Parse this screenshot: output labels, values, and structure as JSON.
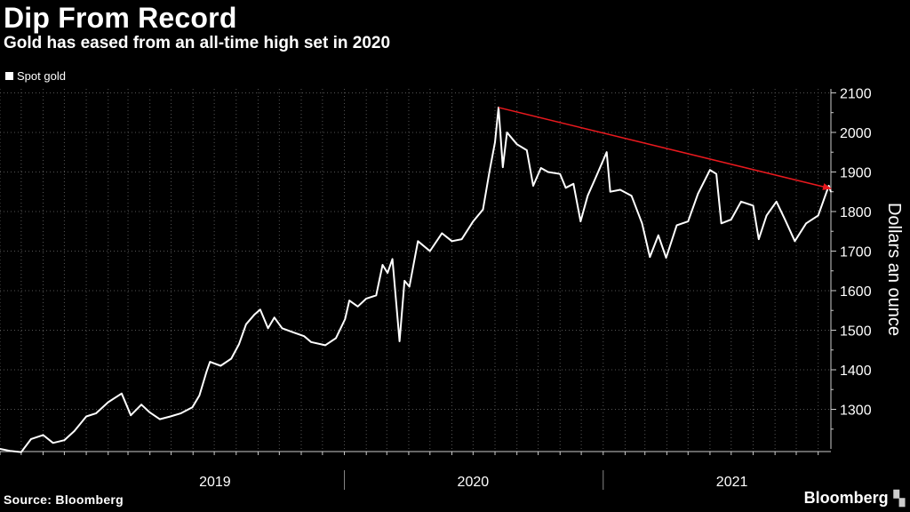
{
  "header": {
    "title": "Dip From Record",
    "subtitle": "Gold has eased from an all-time high set in 2020"
  },
  "legend": {
    "items": [
      {
        "label": "Spot gold",
        "color": "#ffffff"
      }
    ]
  },
  "footer": {
    "source": "Source: Bloomberg",
    "brand": "Bloomberg"
  },
  "colors": {
    "background": "#000000",
    "line": "#ffffff",
    "arrow": "#e8191e",
    "grid": "#555555"
  },
  "chart_data": {
    "type": "line",
    "title": "Dip From Record",
    "subtitle": "Gold has eased from an all-time high set in 2020",
    "xlabel": "",
    "ylabel": "Dollars an ounce",
    "xlim": [
      "2018-09-01",
      "2021-11-19"
    ],
    "ylim": [
      1200,
      2110
    ],
    "y_ticks": [
      1300,
      1400,
      1500,
      1600,
      1700,
      1800,
      1900,
      2000,
      2100
    ],
    "x_tick_labels": [
      {
        "label": "2019",
        "x": "2019-07-02"
      },
      {
        "label": "2020",
        "x": "2020-07-01"
      },
      {
        "label": "2021",
        "x": "2021-07-02"
      }
    ],
    "x_year_dividers": [
      "2020-01-01",
      "2021-01-01"
    ],
    "grid": true,
    "y_axis_position": "right",
    "legend_position": "top-left",
    "series": [
      {
        "name": "Spot gold",
        "points": [
          [
            "2018-09-01",
            1200
          ],
          [
            "2018-09-15",
            1195
          ],
          [
            "2018-10-01",
            1192
          ],
          [
            "2018-10-15",
            1225
          ],
          [
            "2018-11-01",
            1235
          ],
          [
            "2018-11-15",
            1215
          ],
          [
            "2018-12-01",
            1222
          ],
          [
            "2018-12-15",
            1245
          ],
          [
            "2019-01-01",
            1282
          ],
          [
            "2019-01-15",
            1290
          ],
          [
            "2019-02-01",
            1318
          ],
          [
            "2019-02-20",
            1340
          ],
          [
            "2019-03-05",
            1285
          ],
          [
            "2019-03-20",
            1312
          ],
          [
            "2019-04-01",
            1292
          ],
          [
            "2019-04-15",
            1275
          ],
          [
            "2019-04-30",
            1282
          ],
          [
            "2019-05-15",
            1290
          ],
          [
            "2019-05-31",
            1305
          ],
          [
            "2019-06-10",
            1335
          ],
          [
            "2019-06-20",
            1395
          ],
          [
            "2019-06-25",
            1420
          ],
          [
            "2019-07-10",
            1410
          ],
          [
            "2019-07-25",
            1428
          ],
          [
            "2019-08-05",
            1465
          ],
          [
            "2019-08-15",
            1515
          ],
          [
            "2019-08-27",
            1540
          ],
          [
            "2019-09-04",
            1552
          ],
          [
            "2019-09-15",
            1505
          ],
          [
            "2019-09-24",
            1532
          ],
          [
            "2019-10-05",
            1505
          ],
          [
            "2019-10-20",
            1495
          ],
          [
            "2019-11-05",
            1485
          ],
          [
            "2019-11-15",
            1470
          ],
          [
            "2019-12-05",
            1462
          ],
          [
            "2019-12-20",
            1480
          ],
          [
            "2020-01-02",
            1528
          ],
          [
            "2020-01-08",
            1575
          ],
          [
            "2020-01-20",
            1560
          ],
          [
            "2020-02-01",
            1580
          ],
          [
            "2020-02-15",
            1588
          ],
          [
            "2020-02-24",
            1665
          ],
          [
            "2020-03-02",
            1645
          ],
          [
            "2020-03-09",
            1680
          ],
          [
            "2020-03-19",
            1472
          ],
          [
            "2020-03-26",
            1625
          ],
          [
            "2020-04-02",
            1610
          ],
          [
            "2020-04-14",
            1725
          ],
          [
            "2020-05-01",
            1700
          ],
          [
            "2020-05-18",
            1745
          ],
          [
            "2020-06-01",
            1725
          ],
          [
            "2020-06-15",
            1730
          ],
          [
            "2020-07-01",
            1775
          ],
          [
            "2020-07-15",
            1805
          ],
          [
            "2020-07-24",
            1900
          ],
          [
            "2020-08-01",
            1975
          ],
          [
            "2020-08-06",
            2063
          ],
          [
            "2020-08-12",
            1912
          ],
          [
            "2020-08-18",
            2000
          ],
          [
            "2020-09-01",
            1970
          ],
          [
            "2020-09-15",
            1955
          ],
          [
            "2020-09-24",
            1865
          ],
          [
            "2020-10-05",
            1910
          ],
          [
            "2020-10-15",
            1900
          ],
          [
            "2020-11-01",
            1895
          ],
          [
            "2020-11-09",
            1860
          ],
          [
            "2020-11-20",
            1870
          ],
          [
            "2020-11-30",
            1775
          ],
          [
            "2020-12-10",
            1840
          ],
          [
            "2020-12-20",
            1880
          ],
          [
            "2021-01-06",
            1950
          ],
          [
            "2021-01-11",
            1850
          ],
          [
            "2021-01-25",
            1855
          ],
          [
            "2021-02-10",
            1840
          ],
          [
            "2021-02-25",
            1770
          ],
          [
            "2021-03-08",
            1685
          ],
          [
            "2021-03-20",
            1740
          ],
          [
            "2021-03-31",
            1683
          ],
          [
            "2021-04-15",
            1765
          ],
          [
            "2021-05-01",
            1775
          ],
          [
            "2021-05-15",
            1845
          ],
          [
            "2021-06-01",
            1905
          ],
          [
            "2021-06-10",
            1895
          ],
          [
            "2021-06-17",
            1770
          ],
          [
            "2021-07-01",
            1780
          ],
          [
            "2021-07-15",
            1825
          ],
          [
            "2021-08-01",
            1815
          ],
          [
            "2021-08-09",
            1730
          ],
          [
            "2021-08-20",
            1790
          ],
          [
            "2021-09-03",
            1825
          ],
          [
            "2021-09-15",
            1780
          ],
          [
            "2021-09-29",
            1725
          ],
          [
            "2021-10-15",
            1770
          ],
          [
            "2021-11-01",
            1790
          ],
          [
            "2021-11-16",
            1865
          ],
          [
            "2021-11-19",
            1850
          ]
        ]
      }
    ],
    "annotations": [
      {
        "type": "arrow",
        "color": "#e8191e",
        "from": [
          "2020-08-06",
          2063
        ],
        "to": [
          "2021-11-19",
          1858
        ]
      }
    ]
  }
}
